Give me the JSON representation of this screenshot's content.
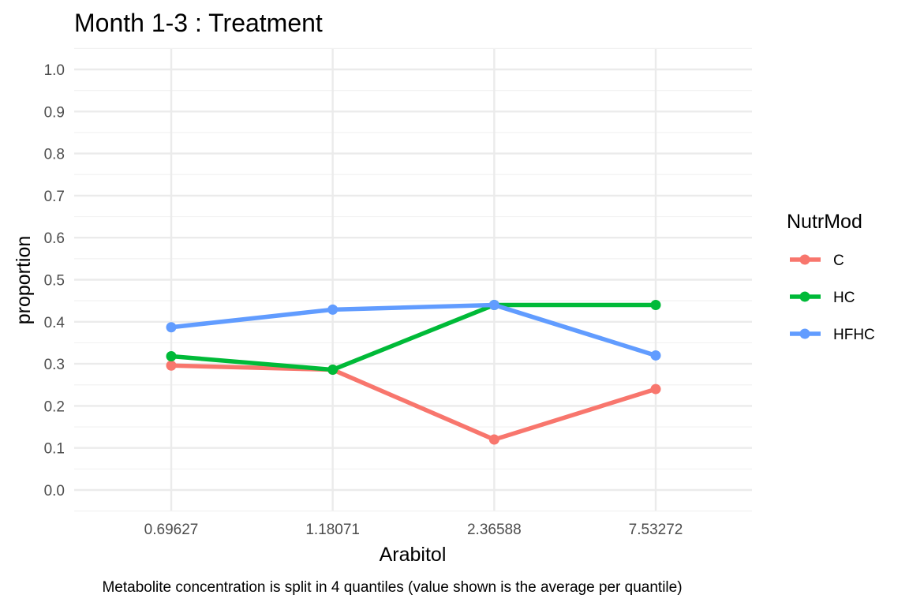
{
  "chart_data": {
    "type": "line",
    "title": "Month 1-3 : Treatment",
    "xlabel": "Arabitol",
    "ylabel": "proportion",
    "caption": "Metabolite concentration is split in 4 quantiles (value shown is the average per quantile)",
    "categories": [
      "0.69627",
      "1.18071",
      "2.36588",
      "7.53272"
    ],
    "ylim": [
      0,
      1
    ],
    "yticks": [
      "0.0",
      "0.1",
      "0.2",
      "0.3",
      "0.4",
      "0.5",
      "0.6",
      "0.7",
      "0.8",
      "0.9",
      "1.0"
    ],
    "grid": true,
    "legend": {
      "title": "NutrMod",
      "position": "right"
    },
    "series": [
      {
        "name": "C",
        "color": "#F8766D",
        "values": [
          0.296,
          0.286,
          0.12,
          0.24
        ]
      },
      {
        "name": "HC",
        "color": "#00BA38",
        "values": [
          0.318,
          0.286,
          0.44,
          0.44
        ]
      },
      {
        "name": "HFHC",
        "color": "#619CFF",
        "values": [
          0.387,
          0.429,
          0.44,
          0.32
        ]
      }
    ]
  }
}
